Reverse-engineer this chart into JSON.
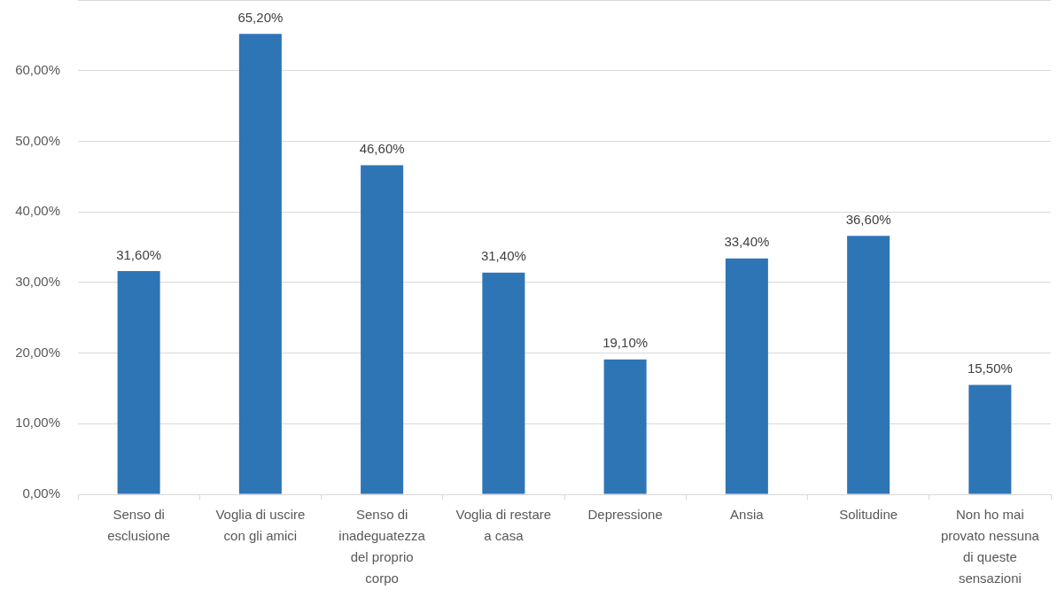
{
  "chart_data": {
    "type": "bar",
    "categories": [
      "Senso di esclusione",
      "Voglia di uscire con gli amici",
      "Senso di inadeguatezza del proprio corpo",
      "Voglia di restare a casa",
      "Depressione",
      "Ansia",
      "Solitudine",
      "Non ho mai provato nessuna di queste sensazioni"
    ],
    "values": [
      31.6,
      65.2,
      46.6,
      31.4,
      19.1,
      33.4,
      36.6,
      15.5
    ],
    "value_labels": [
      "31,60%",
      "65,20%",
      "46,60%",
      "31,40%",
      "19,10%",
      "33,40%",
      "36,60%",
      "15,50%"
    ],
    "color": "#2e75b6",
    "ylim": [
      0,
      70
    ],
    "yticks": [
      {
        "value": 0,
        "label": "0,00%"
      },
      {
        "value": 10,
        "label": "10,00%"
      },
      {
        "value": 20,
        "label": "20,00%"
      },
      {
        "value": 30,
        "label": "30,00%"
      },
      {
        "value": 40,
        "label": "40,00%"
      },
      {
        "value": 50,
        "label": "50,00%"
      },
      {
        "value": 60,
        "label": "60,00%"
      },
      {
        "value": 70,
        "label": null
      }
    ],
    "grid": "y"
  }
}
